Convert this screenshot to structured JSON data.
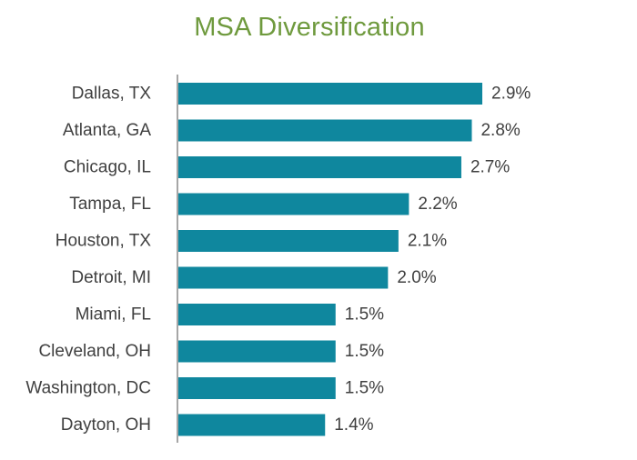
{
  "chart_data": {
    "type": "bar",
    "orientation": "horizontal",
    "title": "MSA Diversification",
    "categories": [
      "Dallas, TX",
      "Atlanta, GA",
      "Chicago, IL",
      "Tampa, FL",
      "Houston, TX",
      "Detroit, MI",
      "Miami, FL",
      "Cleveland, OH",
      "Washington, DC",
      "Dayton, OH"
    ],
    "values": [
      2.9,
      2.8,
      2.7,
      2.2,
      2.1,
      2.0,
      1.5,
      1.5,
      1.5,
      1.4
    ],
    "value_labels": [
      "2.9%",
      "2.8%",
      "2.7%",
      "2.2%",
      "2.1%",
      "2.0%",
      "1.5%",
      "1.5%",
      "1.5%",
      "1.4%"
    ],
    "unit": "%",
    "xlim": [
      0,
      3.3
    ],
    "xlabel": "",
    "ylabel": "",
    "grid": false,
    "legend": "none"
  },
  "colors": {
    "title": "#6f9a3e",
    "bar": "#0f879e",
    "axis": "#a6a6a6",
    "text": "#404040"
  }
}
